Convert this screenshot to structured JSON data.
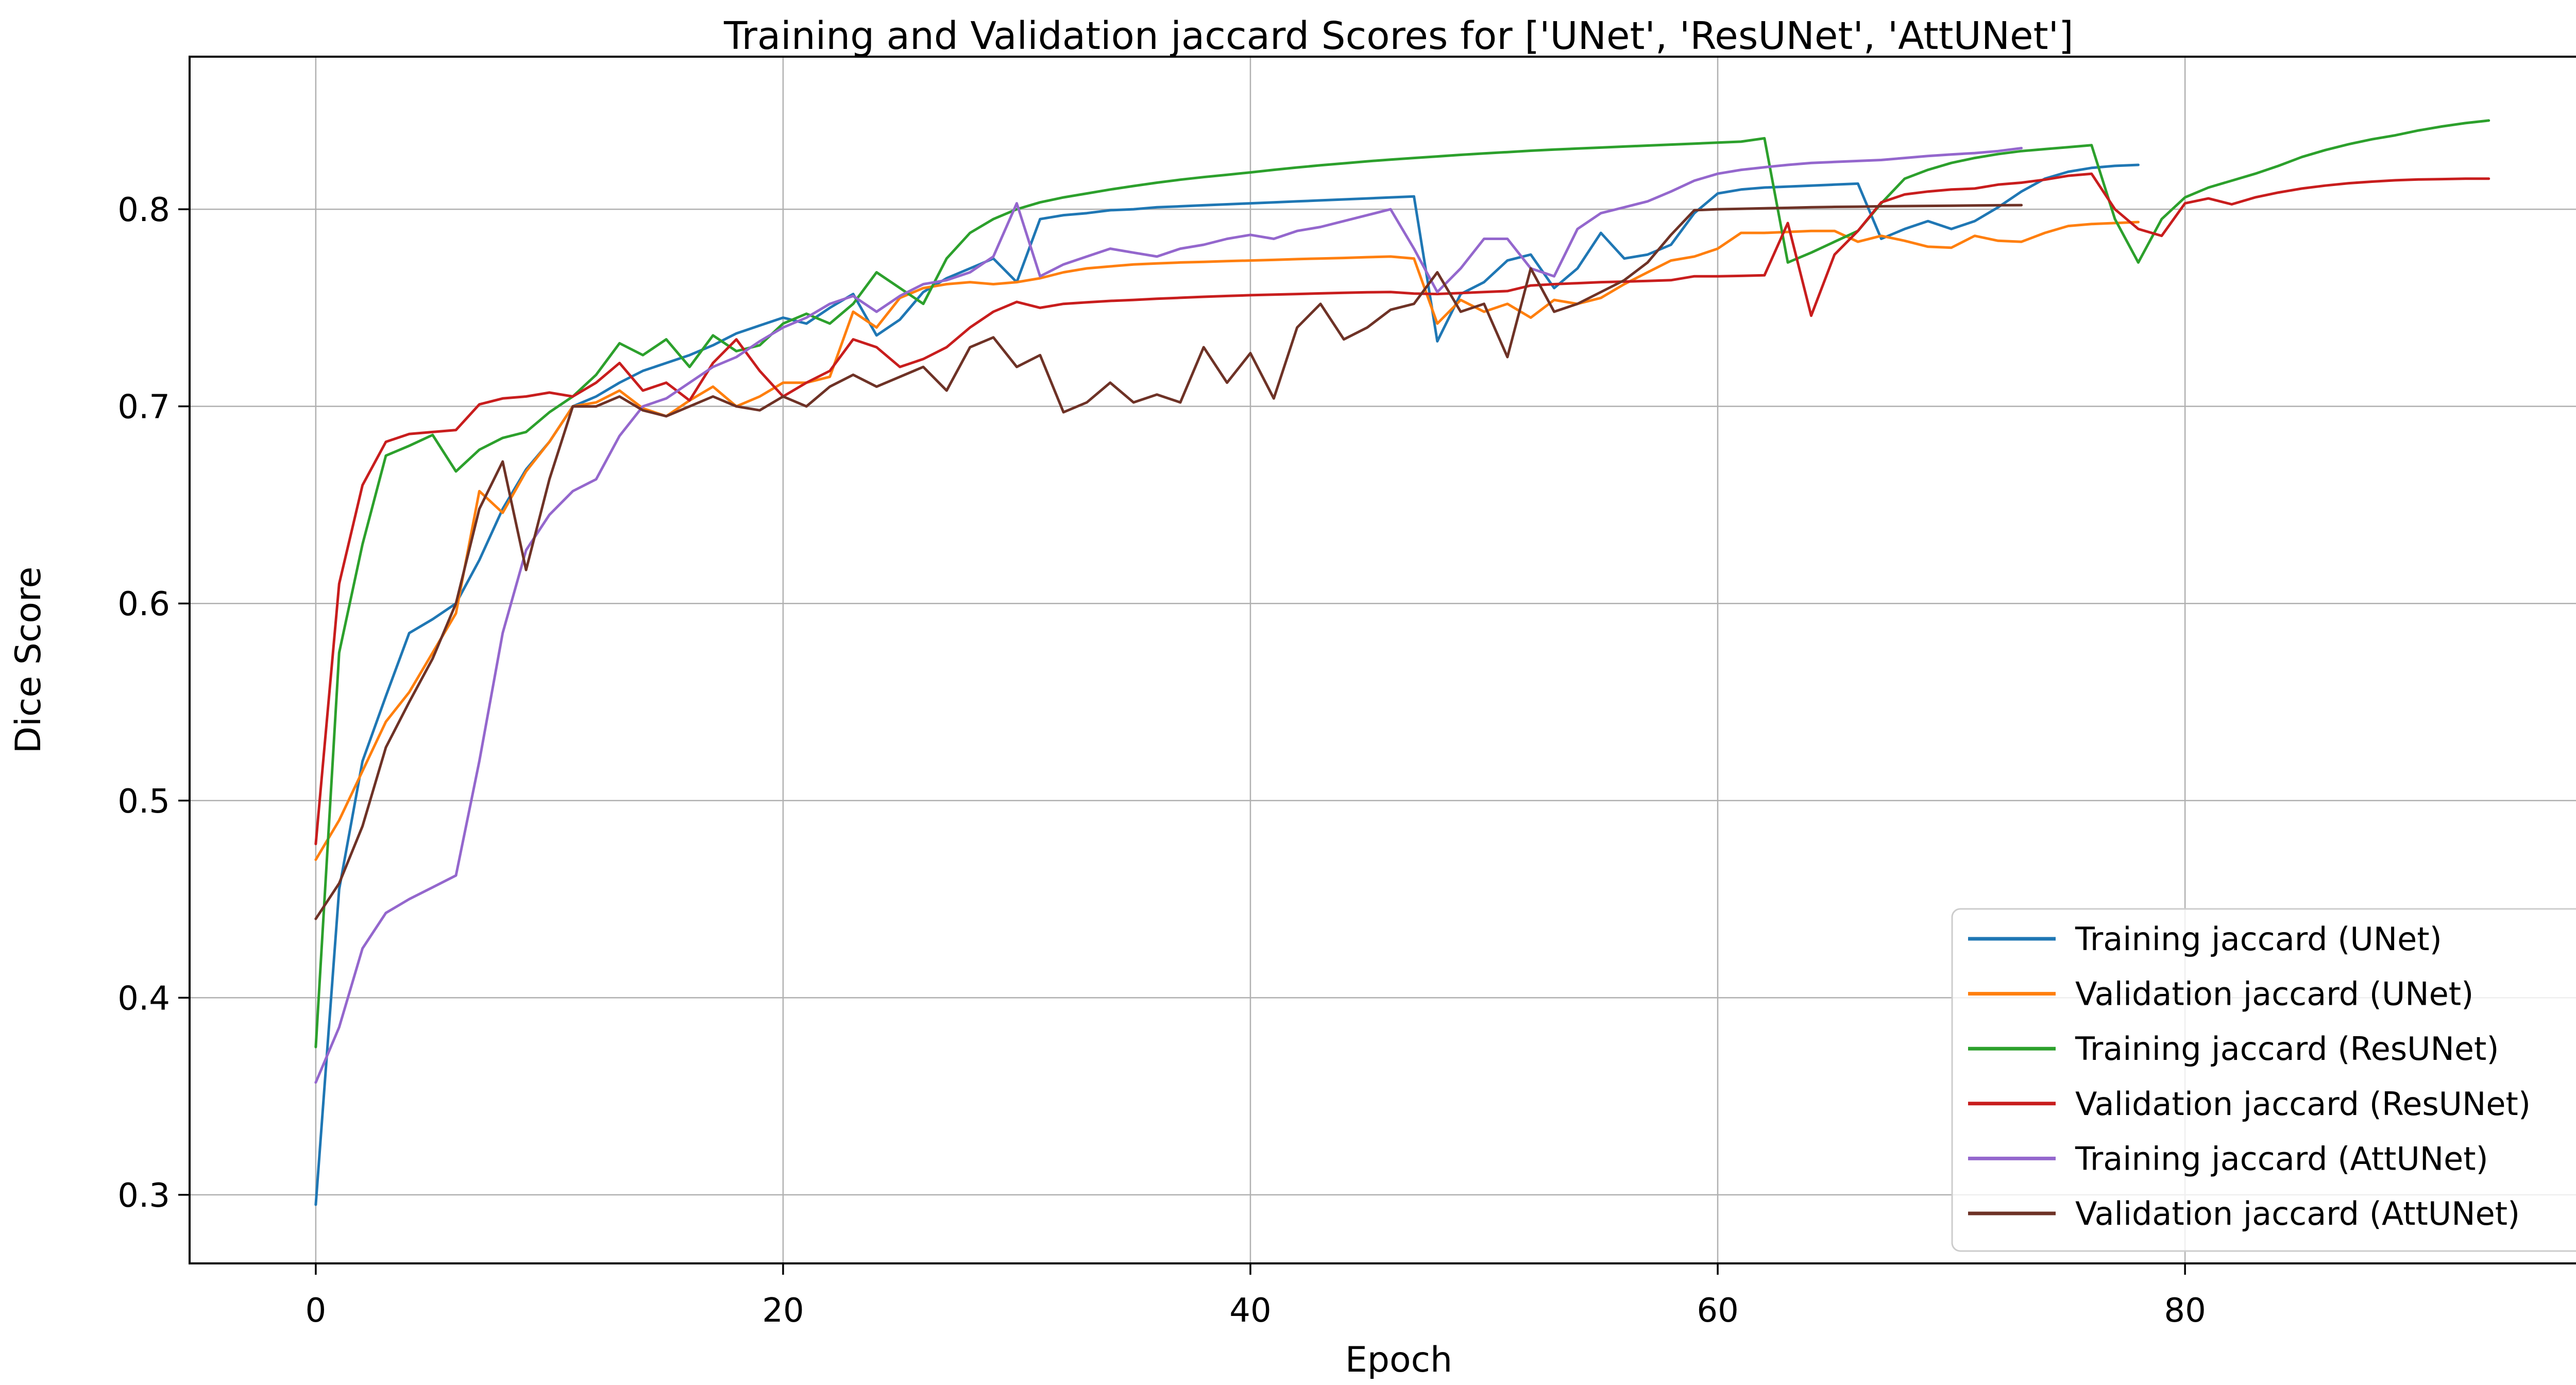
{
  "figure": {
    "background": "#ffffff"
  },
  "chart_data": {
    "type": "line",
    "title": "Training and Validation jaccard Scores for ['UNet', 'ResUNet', 'AttUNet']",
    "xlabel": "Epoch",
    "ylabel": "Dice Score",
    "xlim": [
      -5.4,
      98.1
    ],
    "ylim": [
      0.2652,
      0.8774
    ],
    "xticks": [
      0,
      20,
      40,
      60,
      80
    ],
    "yticks": [
      0.3,
      0.4,
      0.5,
      0.6,
      0.7,
      0.8
    ],
    "grid": true,
    "grid_color": "#b0b0b0",
    "axis_color": "#000000",
    "legend_position": "lower right",
    "series": [
      {
        "name": "Training jaccard (UNet)",
        "color": "#1f77b4",
        "values": [
          0.295,
          0.455,
          0.52,
          0.553,
          0.585,
          0.592,
          0.6,
          0.622,
          0.648,
          0.668,
          0.682,
          0.7,
          0.705,
          0.712,
          0.718,
          0.722,
          0.726,
          0.731,
          0.737,
          0.741,
          0.745,
          0.742,
          0.75,
          0.757,
          0.736,
          0.744,
          0.758,
          0.765,
          0.77,
          0.775,
          0.763,
          0.795,
          0.797,
          0.798,
          0.7995,
          0.8,
          0.801,
          0.8015,
          0.802,
          0.8025,
          0.803,
          0.8035,
          0.804,
          0.8045,
          0.805,
          0.8055,
          0.806,
          0.8065,
          0.733,
          0.757,
          0.763,
          0.774,
          0.777,
          0.76,
          0.77,
          0.788,
          0.775,
          0.777,
          0.782,
          0.798,
          0.808,
          0.81,
          0.811,
          0.8115,
          0.812,
          0.8125,
          0.813,
          0.785,
          0.79,
          0.794,
          0.79,
          0.794,
          0.801,
          0.809,
          0.8155,
          0.819,
          0.821,
          0.822,
          0.8225
        ]
      },
      {
        "name": "Validation jaccard (UNet)",
        "color": "#ff7f0e",
        "values": [
          0.47,
          0.49,
          0.515,
          0.54,
          0.555,
          0.575,
          0.595,
          0.657,
          0.646,
          0.667,
          0.682,
          0.7,
          0.702,
          0.708,
          0.699,
          0.695,
          0.703,
          0.71,
          0.7,
          0.705,
          0.712,
          0.712,
          0.715,
          0.748,
          0.74,
          0.755,
          0.76,
          0.762,
          0.763,
          0.762,
          0.763,
          0.765,
          0.768,
          0.77,
          0.771,
          0.772,
          0.7725,
          0.773,
          0.7733,
          0.7737,
          0.774,
          0.7743,
          0.7747,
          0.775,
          0.7753,
          0.7757,
          0.776,
          0.775,
          0.742,
          0.754,
          0.748,
          0.752,
          0.745,
          0.754,
          0.752,
          0.755,
          0.762,
          0.768,
          0.774,
          0.776,
          0.78,
          0.788,
          0.788,
          0.7885,
          0.789,
          0.789,
          0.7835,
          0.7865,
          0.784,
          0.781,
          0.7805,
          0.7865,
          0.784,
          0.7835,
          0.788,
          0.7915,
          0.7925,
          0.793,
          0.7935
        ]
      },
      {
        "name": "Training jaccard (ResUNet)",
        "color": "#2ca02c",
        "values": [
          0.375,
          0.575,
          0.63,
          0.675,
          0.68,
          0.6855,
          0.667,
          0.678,
          0.684,
          0.687,
          0.697,
          0.705,
          0.716,
          0.732,
          0.726,
          0.734,
          0.72,
          0.736,
          0.728,
          0.731,
          0.742,
          0.747,
          0.742,
          0.752,
          0.768,
          0.76,
          0.752,
          0.775,
          0.788,
          0.795,
          0.8,
          0.8035,
          0.806,
          0.808,
          0.81,
          0.8118,
          0.8135,
          0.815,
          0.8163,
          0.8175,
          0.8187,
          0.82,
          0.8212,
          0.8223,
          0.8233,
          0.8243,
          0.8252,
          0.826,
          0.8268,
          0.8276,
          0.8283,
          0.829,
          0.8297,
          0.8303,
          0.8308,
          0.8313,
          0.8318,
          0.8323,
          0.8328,
          0.8333,
          0.8338,
          0.8343,
          0.836,
          0.773,
          0.778,
          0.7835,
          0.789,
          0.803,
          0.8155,
          0.82,
          0.8235,
          0.826,
          0.828,
          0.8295,
          0.8305,
          0.8315,
          0.8325,
          0.795,
          0.773,
          0.795,
          0.806,
          0.811,
          0.8145,
          0.818,
          0.822,
          0.8265,
          0.83,
          0.833,
          0.8355,
          0.8375,
          0.84,
          0.842,
          0.8437,
          0.845
        ]
      },
      {
        "name": "Validation jaccard (ResUNet)",
        "color": "#c81d1d",
        "values": [
          0.478,
          0.61,
          0.66,
          0.682,
          0.686,
          0.687,
          0.688,
          0.701,
          0.704,
          0.705,
          0.707,
          0.705,
          0.712,
          0.722,
          0.708,
          0.712,
          0.703,
          0.722,
          0.734,
          0.718,
          0.705,
          0.712,
          0.718,
          0.734,
          0.73,
          0.72,
          0.724,
          0.73,
          0.74,
          0.748,
          0.753,
          0.75,
          0.752,
          0.7528,
          0.7535,
          0.754,
          0.7546,
          0.7551,
          0.7556,
          0.756,
          0.7564,
          0.7567,
          0.757,
          0.7573,
          0.7576,
          0.7579,
          0.758,
          0.7572,
          0.757,
          0.7575,
          0.758,
          0.7585,
          0.7613,
          0.762,
          0.7625,
          0.763,
          0.7633,
          0.7636,
          0.764,
          0.766,
          0.766,
          0.7662,
          0.7665,
          0.793,
          0.746,
          0.777,
          0.789,
          0.8035,
          0.8075,
          0.809,
          0.81,
          0.8105,
          0.8125,
          0.8135,
          0.815,
          0.817,
          0.818,
          0.8,
          0.79,
          0.7865,
          0.803,
          0.8055,
          0.8025,
          0.806,
          0.8085,
          0.8105,
          0.812,
          0.8132,
          0.814,
          0.8147,
          0.8151,
          0.8153,
          0.8155,
          0.8155
        ]
      },
      {
        "name": "Training jaccard (AttUNet)",
        "color": "#9467cd",
        "values": [
          0.357,
          0.385,
          0.425,
          0.443,
          0.45,
          0.456,
          0.462,
          0.52,
          0.585,
          0.627,
          0.645,
          0.657,
          0.663,
          0.685,
          0.7,
          0.704,
          0.712,
          0.72,
          0.725,
          0.733,
          0.74,
          0.745,
          0.752,
          0.756,
          0.748,
          0.756,
          0.762,
          0.764,
          0.768,
          0.776,
          0.803,
          0.766,
          0.772,
          0.776,
          0.78,
          0.778,
          0.776,
          0.78,
          0.782,
          0.785,
          0.787,
          0.785,
          0.789,
          0.791,
          0.794,
          0.797,
          0.8,
          0.78,
          0.758,
          0.77,
          0.785,
          0.785,
          0.77,
          0.766,
          0.79,
          0.798,
          0.801,
          0.804,
          0.809,
          0.8145,
          0.818,
          0.82,
          0.8213,
          0.8225,
          0.8235,
          0.824,
          0.8245,
          0.825,
          0.826,
          0.827,
          0.8278,
          0.8285,
          0.8295,
          0.831
        ]
      },
      {
        "name": "Validation jaccard (AttUNet)",
        "color": "#6e3226",
        "values": [
          0.44,
          0.458,
          0.487,
          0.527,
          0.55,
          0.572,
          0.6,
          0.648,
          0.672,
          0.617,
          0.663,
          0.7,
          0.7,
          0.705,
          0.698,
          0.695,
          0.7,
          0.705,
          0.7,
          0.698,
          0.705,
          0.7,
          0.71,
          0.716,
          0.71,
          0.715,
          0.72,
          0.708,
          0.73,
          0.735,
          0.72,
          0.726,
          0.697,
          0.702,
          0.712,
          0.702,
          0.706,
          0.702,
          0.73,
          0.712,
          0.727,
          0.704,
          0.74,
          0.752,
          0.734,
          0.74,
          0.749,
          0.752,
          0.768,
          0.748,
          0.752,
          0.725,
          0.77,
          0.748,
          0.752,
          0.758,
          0.764,
          0.773,
          0.787,
          0.7995,
          0.8,
          0.8002,
          0.8005,
          0.8007,
          0.801,
          0.8012,
          0.8013,
          0.8015,
          0.8016,
          0.8017,
          0.8018,
          0.8019,
          0.802,
          0.8021
        ]
      }
    ]
  }
}
